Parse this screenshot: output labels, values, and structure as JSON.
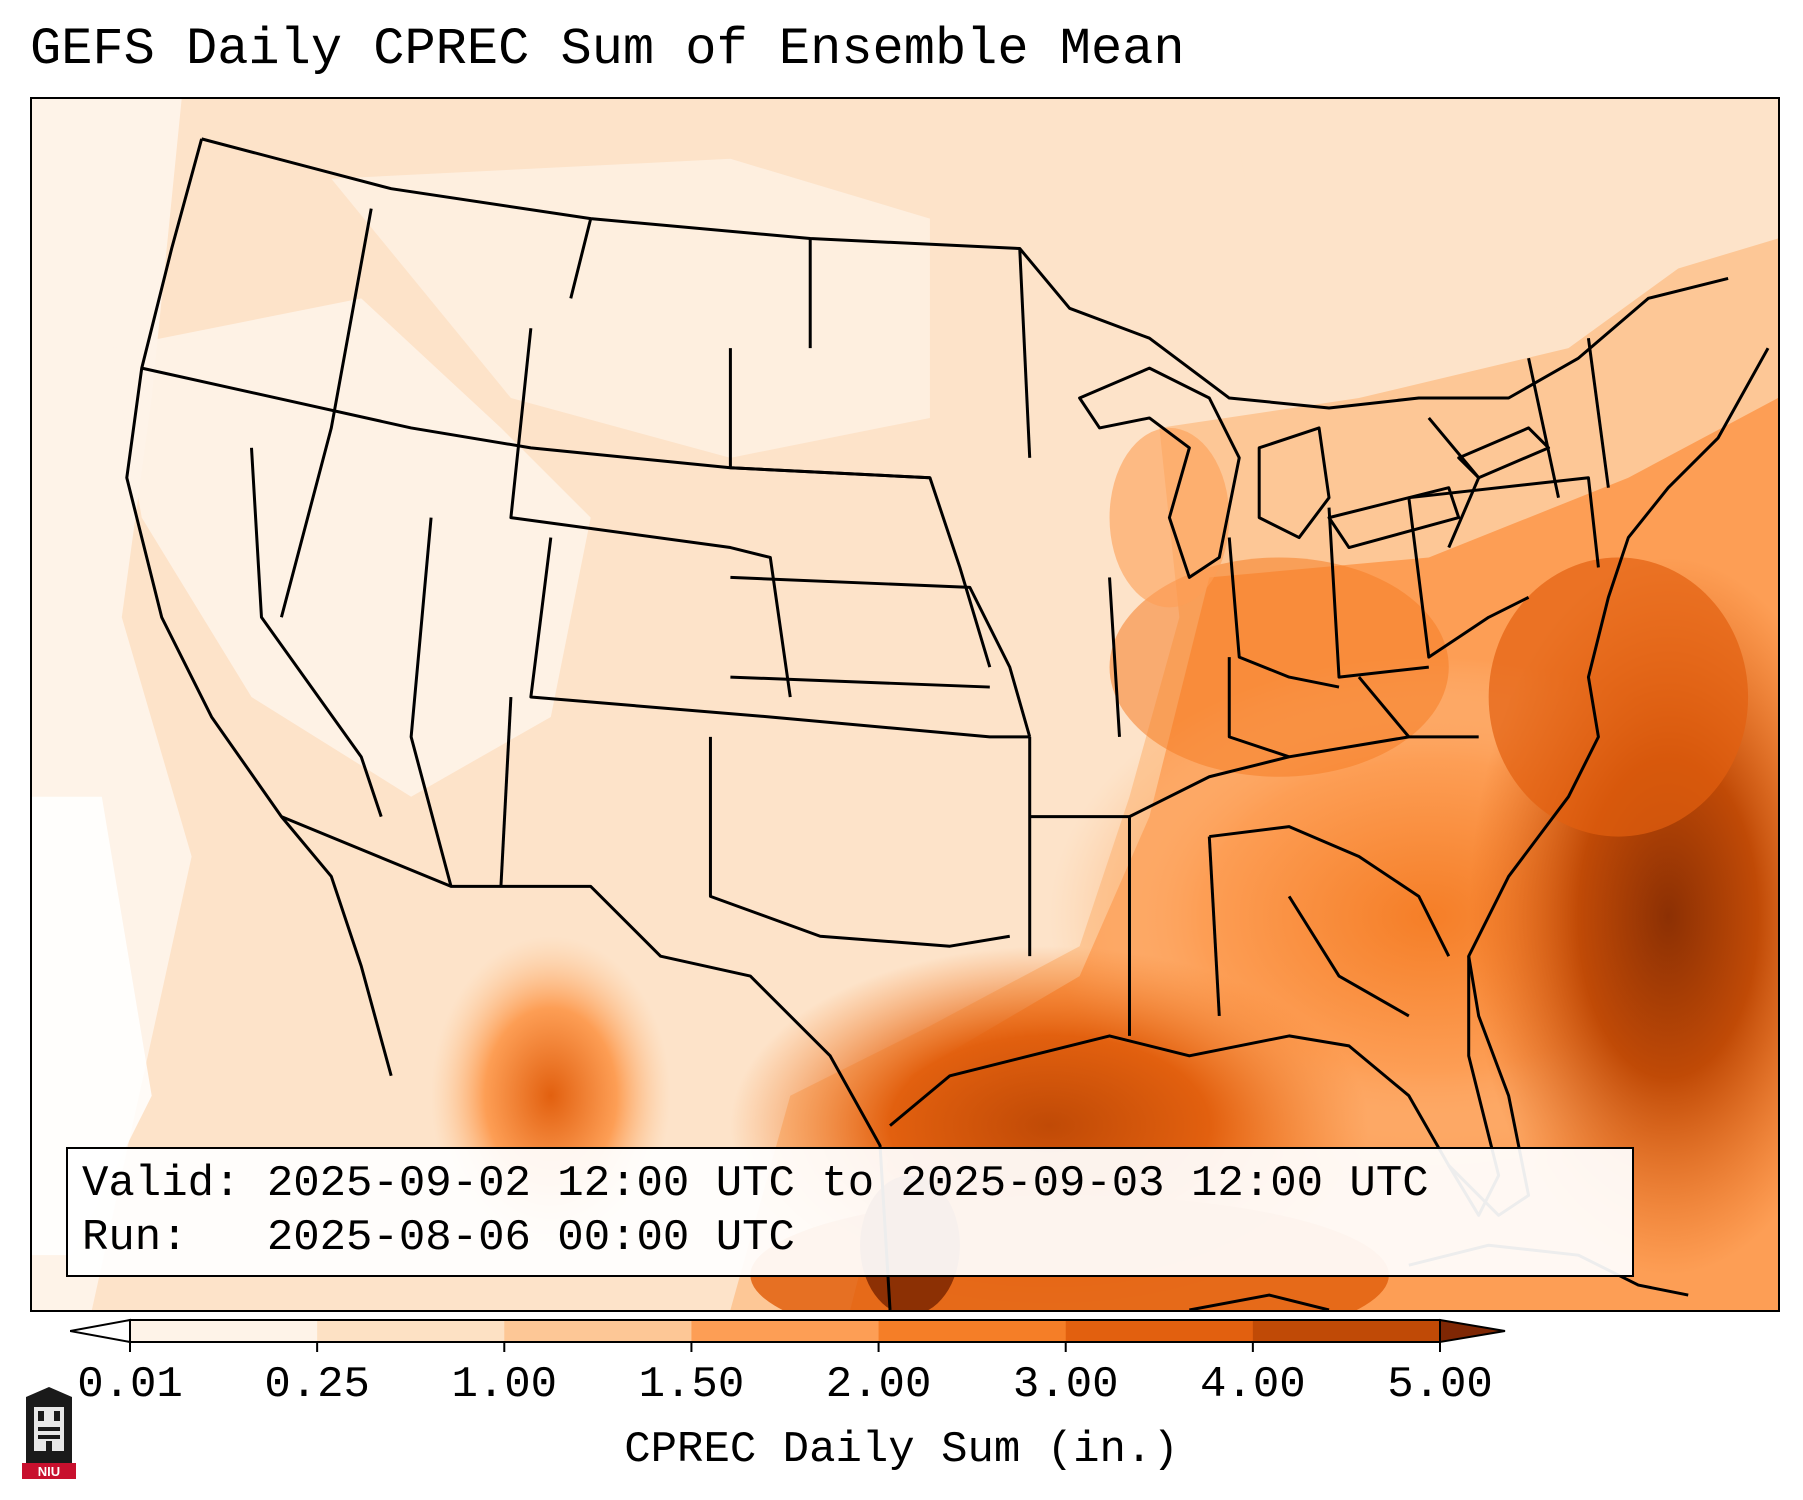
{
  "title": "GEFS Daily CPREC Sum of Ensemble Mean",
  "info": {
    "valid_label": "Valid:",
    "valid_value": "2025-09-02 12:00 UTC to 2025-09-03 12:00 UTC",
    "run_label": "Run:",
    "run_value": "2025-08-06 00:00 UTC"
  },
  "colorbar": {
    "label": "CPREC Daily Sum (in.)",
    "ticks": [
      "0.01",
      "0.25",
      "1.00",
      "1.50",
      "2.00",
      "3.00",
      "4.00",
      "5.00"
    ],
    "colors": [
      "#fef3e8",
      "#fde1c4",
      "#fdc796",
      "#fd9e55",
      "#f57e27",
      "#e2600f",
      "#c04a06",
      "#8c3004"
    ],
    "under_color": "#ffffff",
    "over_color": "#7f2704"
  },
  "map": {
    "region": "Continental United States",
    "boundary_color": "#000000"
  },
  "logo": {
    "text": "NIU",
    "icon": "niu-logo-icon"
  }
}
